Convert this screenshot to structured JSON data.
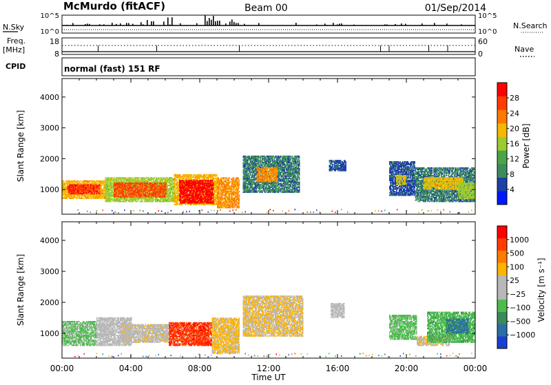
{
  "header": {
    "station": "McMurdo (fitACF)",
    "beam": "Beam 00",
    "date": "01/Sep/2014"
  },
  "top_panels": {
    "nsky_label": "N.Sky",
    "nsky_ticks": [
      "10^5",
      "10^0"
    ],
    "nsearch_label": "N.Search",
    "nsearch_ticks": [
      "10^5",
      "10^0"
    ],
    "freq_label": "Freq.",
    "freq_unit": "[MHz]",
    "freq_ticks": [
      "18",
      "8"
    ],
    "nave_label": "Nave",
    "nave_ticks": [
      "60",
      "0"
    ],
    "cpid_label": "CPID",
    "cpid_text": "normal (fast) 151 RF"
  },
  "colors": {
    "power_scale": [
      "#0018ff",
      "#1d3fa8",
      "#3c8c5c",
      "#4aa547",
      "#9acc2d",
      "#f5b800",
      "#ff7a00",
      "#ff3c00",
      "#ff0000"
    ],
    "velocity_scale": [
      "#1a3fd0",
      "#2a6fa8",
      "#3a8a5a",
      "#4cbc4c",
      "#b8b8b8",
      "#b8b8b8",
      "#ffb400",
      "#ff7a00",
      "#ff3c00",
      "#ff0000"
    ]
  },
  "chart_data": [
    {
      "type": "heatmap",
      "name": "power",
      "ylabel": "Slant Range [km]",
      "yticks": [
        "4000",
        "3000",
        "2000",
        "1000"
      ],
      "ylim": [
        200,
        4600
      ],
      "colorbar_label": "Power [dB]",
      "colorbar_ticks": [
        "28",
        "24",
        "20",
        "16",
        "12",
        "8",
        "4"
      ],
      "clim": [
        0,
        32
      ],
      "regions": [
        {
          "t0": 0.0,
          "t1": 2.5,
          "r0": 700,
          "r1": 1300,
          "level": 20
        },
        {
          "t0": 0.3,
          "t1": 2.2,
          "r0": 850,
          "r1": 1150,
          "level": 28
        },
        {
          "t0": 2.5,
          "t1": 6.5,
          "r0": 600,
          "r1": 1400,
          "level": 16
        },
        {
          "t0": 3.0,
          "t1": 6.0,
          "r0": 750,
          "r1": 1200,
          "level": 26
        },
        {
          "t0": 6.5,
          "t1": 9.0,
          "r0": 500,
          "r1": 1500,
          "level": 20
        },
        {
          "t0": 6.8,
          "t1": 8.8,
          "r0": 550,
          "r1": 1300,
          "level": 31
        },
        {
          "t0": 9.0,
          "t1": 10.3,
          "r0": 400,
          "r1": 1400,
          "level": 22
        },
        {
          "t0": 10.5,
          "t1": 13.8,
          "r0": 900,
          "r1": 2100,
          "level": 8
        },
        {
          "t0": 11.3,
          "t1": 12.5,
          "r0": 1250,
          "r1": 1700,
          "level": 22
        },
        {
          "t0": 15.5,
          "t1": 16.5,
          "r0": 1600,
          "r1": 1950,
          "level": 6
        },
        {
          "t0": 19.0,
          "t1": 20.5,
          "r0": 800,
          "r1": 1900,
          "level": 6
        },
        {
          "t0": 19.4,
          "t1": 20.0,
          "r0": 1150,
          "r1": 1450,
          "level": 18
        },
        {
          "t0": 20.5,
          "t1": 24.0,
          "r0": 600,
          "r1": 1700,
          "level": 8
        },
        {
          "t0": 21.0,
          "t1": 23.3,
          "r0": 1000,
          "r1": 1400,
          "level": 19
        },
        {
          "t0": 23.0,
          "t1": 24.0,
          "r0": 700,
          "r1": 1200,
          "level": 16
        }
      ]
    },
    {
      "type": "heatmap",
      "name": "velocity",
      "ylabel": "Slant Range [km]",
      "yticks": [
        "4000",
        "3000",
        "2000",
        "1000"
      ],
      "ylim": [
        200,
        4600
      ],
      "colorbar_label": "Velocity [m s⁻¹]",
      "colorbar_ticks": [
        "1000",
        "500",
        "100",
        "25",
        "−25",
        "−100",
        "−500",
        "−1000"
      ],
      "clim": [
        -1250,
        1250
      ],
      "regions": [
        {
          "t0": 0.0,
          "t1": 2.0,
          "r0": 600,
          "r1": 1400,
          "level": -300
        },
        {
          "t0": 2.0,
          "t1": 4.0,
          "r0": 600,
          "r1": 1500,
          "level": -80
        },
        {
          "t0": 3.5,
          "t1": 6.2,
          "r0": 700,
          "r1": 1300,
          "level": 150
        },
        {
          "t0": 6.2,
          "t1": 8.7,
          "r0": 600,
          "r1": 1350,
          "level": 900
        },
        {
          "t0": 8.7,
          "t1": 10.3,
          "r0": 350,
          "r1": 1500,
          "level": 300
        },
        {
          "t0": 10.5,
          "t1": 14.0,
          "r0": 900,
          "r1": 2200,
          "level": 250
        },
        {
          "t0": 15.6,
          "t1": 16.4,
          "r0": 1500,
          "r1": 1950,
          "level": -90
        },
        {
          "t0": 19.0,
          "t1": 20.6,
          "r0": 800,
          "r1": 1600,
          "level": -350
        },
        {
          "t0": 20.6,
          "t1": 22.5,
          "r0": 600,
          "r1": 900,
          "level": 200
        },
        {
          "t0": 21.2,
          "t1": 24.0,
          "r0": 700,
          "r1": 1700,
          "level": -400
        },
        {
          "t0": 22.3,
          "t1": 23.6,
          "r0": 1000,
          "r1": 1450,
          "level": -800
        }
      ]
    }
  ],
  "time_axis": {
    "label": "Time UT",
    "ticks": [
      "00:00",
      "04:00",
      "08:00",
      "12:00",
      "16:00",
      "20:00",
      "00:00"
    ],
    "range_hours": [
      0,
      24
    ]
  }
}
